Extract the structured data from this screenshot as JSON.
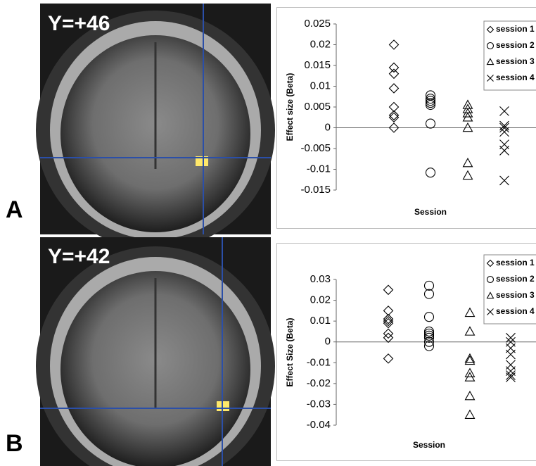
{
  "panels": [
    {
      "letter": "A",
      "slice": "Y=+46"
    },
    {
      "letter": "B",
      "slice": "Y=+42"
    }
  ],
  "chart_data": [
    {
      "type": "scatter",
      "ylabel": "Effect size (Beta)",
      "xlabel": "Session",
      "ylim": [
        -0.015,
        0.025
      ],
      "yticks": [
        -0.015,
        -0.01,
        -0.005,
        0,
        0.005,
        0.01,
        0.015,
        0.02,
        0.025
      ],
      "grid": false,
      "legend": "upper right",
      "series": [
        {
          "name": "session 1",
          "marker": "diamond",
          "color": "#000000",
          "values": [
            0.02,
            0.0145,
            0.013,
            0.0095,
            0.005,
            0.003,
            0.0025,
            0
          ]
        },
        {
          "name": "session 2",
          "marker": "circle",
          "color": "#000000",
          "values": [
            0.0078,
            0.007,
            0.0065,
            0.006,
            0.0055,
            0.001,
            -0.0108
          ]
        },
        {
          "name": "session 3",
          "marker": "triangle",
          "color": "#000000",
          "values": [
            0.0055,
            0.0045,
            0.0035,
            0.0025,
            0,
            -0.0085,
            -0.0115
          ]
        },
        {
          "name": "session 4",
          "marker": "x",
          "color": "#000000",
          "values": [
            0.004,
            0.0005,
            0,
            -0.001,
            -0.004,
            -0.0055,
            -0.0127
          ]
        }
      ]
    },
    {
      "type": "scatter",
      "ylabel": "Effect Size (Beta)",
      "xlabel": "Session",
      "ylim": [
        -0.04,
        0.03
      ],
      "yticks": [
        -0.04,
        -0.03,
        -0.02,
        -0.01,
        0,
        0.01,
        0.02,
        0.03
      ],
      "grid": false,
      "legend": "upper right",
      "series": [
        {
          "name": "session 1",
          "marker": "diamond",
          "color": "#000000",
          "values": [
            0.025,
            0.015,
            0.011,
            0.01,
            0.009,
            0.004,
            0.002,
            -0.008
          ]
        },
        {
          "name": "session 2",
          "marker": "circle",
          "color": "#000000",
          "values": [
            0.027,
            0.023,
            0.012,
            0.005,
            0.004,
            0.003,
            0.002,
            0,
            -0.002
          ]
        },
        {
          "name": "session 3",
          "marker": "triangle",
          "color": "#000000",
          "values": [
            0.014,
            0.005,
            -0.008,
            -0.009,
            -0.015,
            -0.017,
            -0.026,
            -0.035
          ]
        },
        {
          "name": "session 4",
          "marker": "x",
          "color": "#000000",
          "values": [
            0.002,
            0,
            -0.003,
            -0.006,
            -0.011,
            -0.014,
            -0.016,
            -0.017
          ]
        }
      ]
    }
  ]
}
